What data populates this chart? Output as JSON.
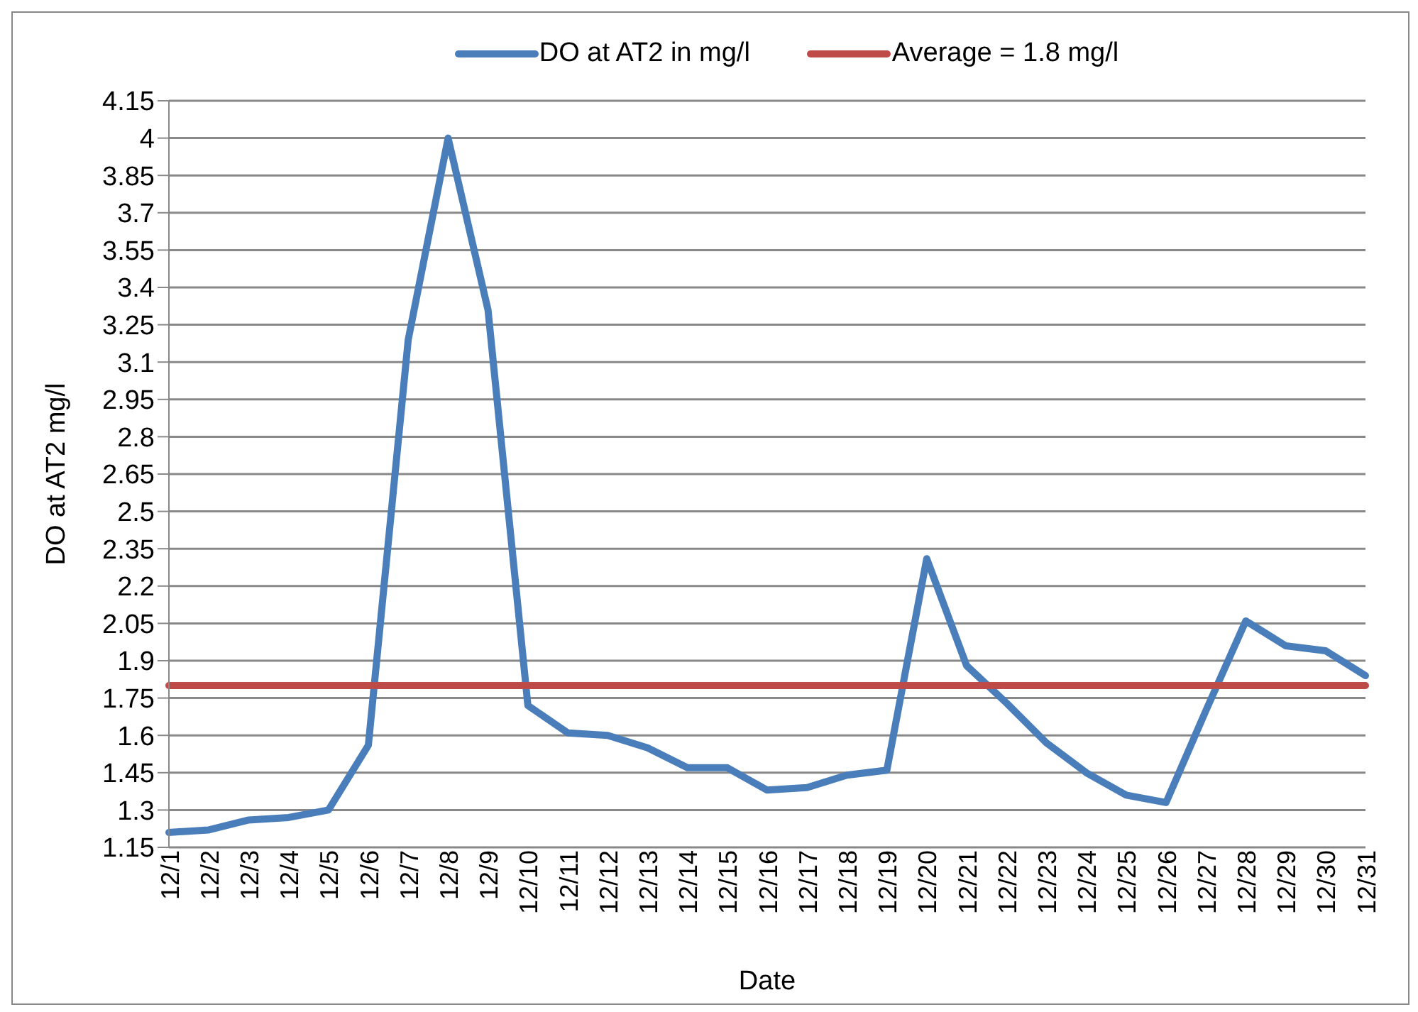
{
  "chart_data": {
    "type": "line",
    "xlabel": "Date",
    "ylabel": "DO at AT2 mg/l",
    "categories": [
      "12/1",
      "12/2",
      "12/3",
      "12/4",
      "12/5",
      "12/6",
      "12/7",
      "12/8",
      "12/9",
      "12/10",
      "12/11",
      "12/12",
      "12/13",
      "12/14",
      "12/15",
      "12/16",
      "12/17",
      "12/18",
      "12/19",
      "12/20",
      "12/21",
      "12/22",
      "12/23",
      "12/24",
      "12/25",
      "12/26",
      "12/27",
      "12/28",
      "12/29",
      "12/30",
      "12/31"
    ],
    "series": [
      {
        "name": "DO at AT2 in mg/l",
        "color": "#4a7ebb",
        "values": [
          1.21,
          1.22,
          1.26,
          1.27,
          1.3,
          1.56,
          3.19,
          4.0,
          3.31,
          1.72,
          1.61,
          1.6,
          1.55,
          1.47,
          1.47,
          1.38,
          1.39,
          1.44,
          1.46,
          2.31,
          1.88,
          1.73,
          1.57,
          1.45,
          1.36,
          1.33,
          1.7,
          2.06,
          1.96,
          1.94,
          1.84
        ]
      },
      {
        "name": "Average = 1.8 mg/l",
        "color": "#be4b48",
        "values": [
          1.8,
          1.8,
          1.8,
          1.8,
          1.8,
          1.8,
          1.8,
          1.8,
          1.8,
          1.8,
          1.8,
          1.8,
          1.8,
          1.8,
          1.8,
          1.8,
          1.8,
          1.8,
          1.8,
          1.8,
          1.8,
          1.8,
          1.8,
          1.8,
          1.8,
          1.8,
          1.8,
          1.8,
          1.8,
          1.8,
          1.8
        ]
      }
    ],
    "ylim": [
      1.15,
      4.15
    ],
    "yticks": [
      1.15,
      1.3,
      1.45,
      1.6,
      1.75,
      1.9,
      2.05,
      2.2,
      2.35,
      2.5,
      2.65,
      2.8,
      2.95,
      3.1,
      3.25,
      3.4,
      3.55,
      3.7,
      3.85,
      4,
      4.15
    ],
    "grid": "y",
    "legend": "top",
    "marker": "none",
    "line_style": "solid"
  }
}
